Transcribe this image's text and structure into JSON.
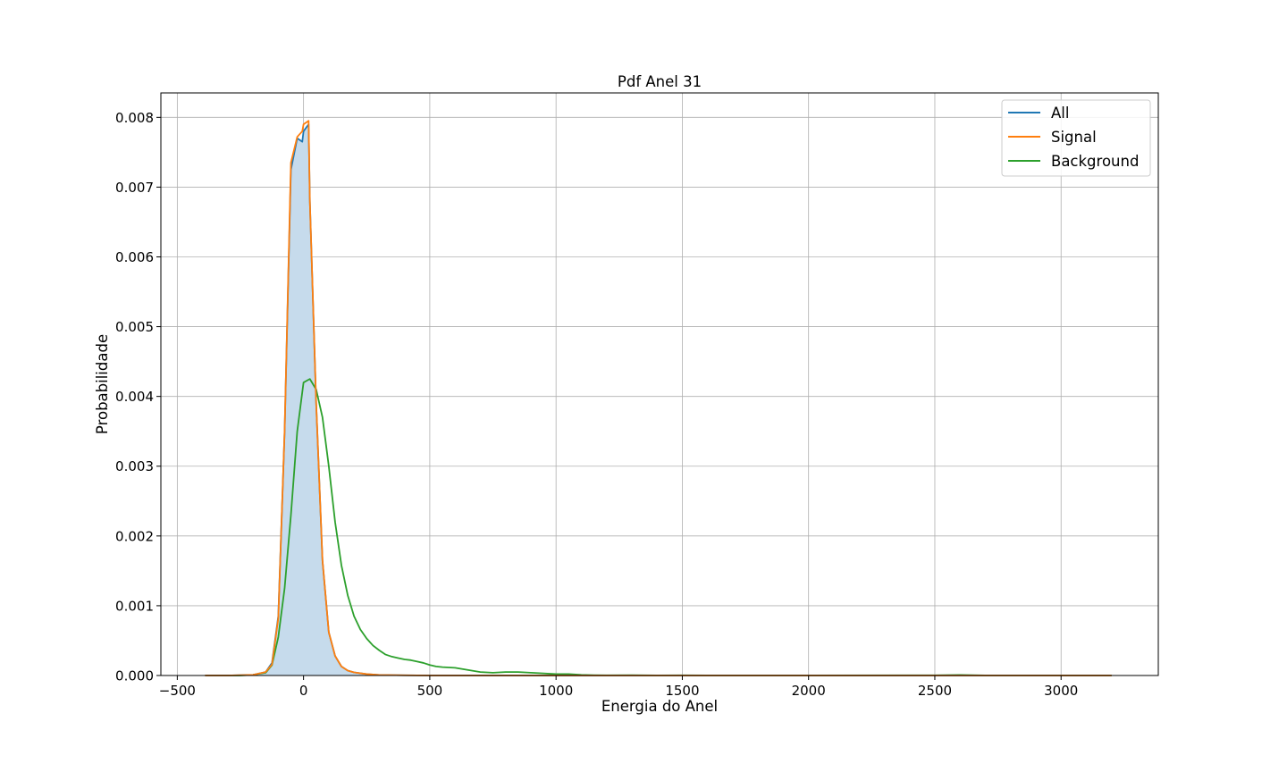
{
  "chart_data": {
    "type": "line",
    "title": "Pdf Anel 31",
    "xlabel": "Energia do Anel",
    "ylabel": "Probabilidade",
    "xlim": [
      -565,
      3385
    ],
    "ylim": [
      0,
      0.00835
    ],
    "xticks": [
      -500,
      0,
      500,
      1000,
      1500,
      2000,
      2500,
      3000
    ],
    "xtick_labels": [
      "−500",
      "0",
      "500",
      "1000",
      "1500",
      "2000",
      "2500",
      "3000"
    ],
    "yticks": [
      0,
      0.001,
      0.002,
      0.003,
      0.004,
      0.005,
      0.006,
      0.007,
      0.008
    ],
    "ytick_labels": [
      "0.000",
      "0.001",
      "0.002",
      "0.003",
      "0.004",
      "0.005",
      "0.006",
      "0.007",
      "0.008"
    ],
    "grid": true,
    "legend_position": "upper-right",
    "fill": {
      "series": "All",
      "color": "#c6dbec"
    },
    "series": [
      {
        "name": "All",
        "color": "#1f77b4",
        "x": [
          -390,
          -300,
          -250,
          -200,
          -150,
          -125,
          -100,
          -75,
          -50,
          -25,
          -5,
          0,
          20,
          25,
          50,
          75,
          100,
          125,
          150,
          175,
          200,
          250,
          300,
          400,
          500,
          700,
          1000,
          1500,
          2000,
          2500,
          3000,
          3200
        ],
        "y": [
          0,
          0,
          5e-06,
          1e-05,
          5e-05,
          0.00018,
          0.00085,
          0.0035,
          0.00725,
          0.0077,
          0.00765,
          0.0078,
          0.0079,
          0.0068,
          0.0039,
          0.00165,
          0.00062,
          0.00028,
          0.00013,
          7e-05,
          4.5e-05,
          2e-05,
          8e-06,
          3e-06,
          0,
          0,
          0,
          0,
          0,
          0,
          0,
          0
        ]
      },
      {
        "name": "Signal",
        "color": "#ff7f0e",
        "x": [
          -390,
          -300,
          -250,
          -200,
          -150,
          -125,
          -100,
          -75,
          -50,
          -25,
          -5,
          0,
          20,
          25,
          50,
          75,
          100,
          125,
          150,
          175,
          200,
          250,
          300,
          400,
          500,
          700,
          1000,
          1500,
          2000,
          2500,
          3000,
          3200
        ],
        "y": [
          0,
          0,
          5e-06,
          1e-05,
          5e-05,
          0.00016,
          0.00082,
          0.0035,
          0.00735,
          0.00772,
          0.0078,
          0.0079,
          0.00795,
          0.0068,
          0.0039,
          0.00165,
          0.00062,
          0.00028,
          0.00013,
          7e-05,
          4.5e-05,
          2e-05,
          8e-06,
          3e-06,
          0,
          0,
          0,
          0,
          0,
          0,
          0,
          0
        ]
      },
      {
        "name": "Background",
        "color": "#2ca02c",
        "x": [
          -390,
          -250,
          -200,
          -150,
          -125,
          -100,
          -75,
          -50,
          -25,
          0,
          25,
          50,
          75,
          100,
          125,
          150,
          175,
          200,
          225,
          250,
          275,
          300,
          325,
          350,
          375,
          400,
          425,
          450,
          475,
          500,
          525,
          550,
          600,
          650,
          700,
          750,
          800,
          850,
          900,
          950,
          1000,
          1050,
          1100,
          1150,
          1200,
          1300,
          1400,
          1500,
          1600,
          2000,
          2500,
          2600,
          2700,
          3000,
          3200
        ],
        "y": [
          0,
          0,
          1e-05,
          4e-05,
          0.00015,
          0.00055,
          0.00125,
          0.0023,
          0.0035,
          0.0042,
          0.00425,
          0.0041,
          0.0037,
          0.003,
          0.0022,
          0.00158,
          0.00115,
          0.00085,
          0.00066,
          0.00053,
          0.00043,
          0.00036,
          0.0003,
          0.00027,
          0.00025,
          0.00023,
          0.00022,
          0.0002,
          0.00018,
          0.00015,
          0.00013,
          0.00012,
          0.00011,
          8e-05,
          5e-05,
          4e-05,
          5e-05,
          5e-05,
          4e-05,
          3e-05,
          2e-05,
          2e-05,
          1e-05,
          5e-06,
          3e-06,
          4e-06,
          2e-06,
          3e-06,
          2e-06,
          2e-06,
          3e-06,
          8e-06,
          2e-06,
          1e-06,
          0
        ]
      }
    ]
  }
}
